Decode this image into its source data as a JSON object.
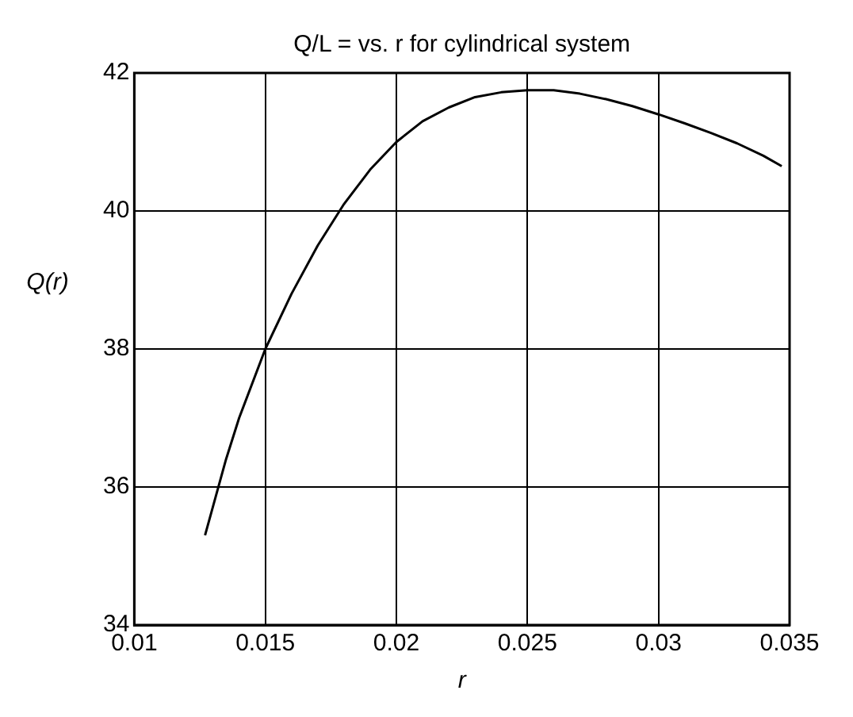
{
  "chart_data": {
    "type": "line",
    "title": "Q/L = vs. r for cylindrical system",
    "xlabel": "r",
    "ylabel": "Q(r)",
    "x": [
      0.0127,
      0.0135,
      0.014,
      0.015,
      0.016,
      0.017,
      0.018,
      0.019,
      0.02,
      0.021,
      0.022,
      0.023,
      0.024,
      0.025,
      0.026,
      0.027,
      0.028,
      0.029,
      0.03,
      0.031,
      0.032,
      0.033,
      0.034,
      0.0347
    ],
    "series": [
      {
        "color": "#000000",
        "values": [
          35.3,
          36.4,
          37.0,
          38.0,
          38.8,
          39.5,
          40.1,
          40.6,
          41.0,
          41.3,
          41.5,
          41.65,
          41.72,
          41.75,
          41.75,
          41.7,
          41.62,
          41.52,
          41.4,
          41.27,
          41.13,
          40.98,
          40.8,
          40.65
        ]
      }
    ],
    "xlim": [
      0.01,
      0.035
    ],
    "xticks": [
      0.01,
      0.015,
      0.02,
      0.025,
      0.03,
      0.035
    ],
    "ylim": [
      34,
      42
    ],
    "yticks": [
      34,
      36,
      38,
      40,
      42
    ],
    "grid": true,
    "legend": false,
    "marker": "none",
    "line_style": "solid"
  }
}
